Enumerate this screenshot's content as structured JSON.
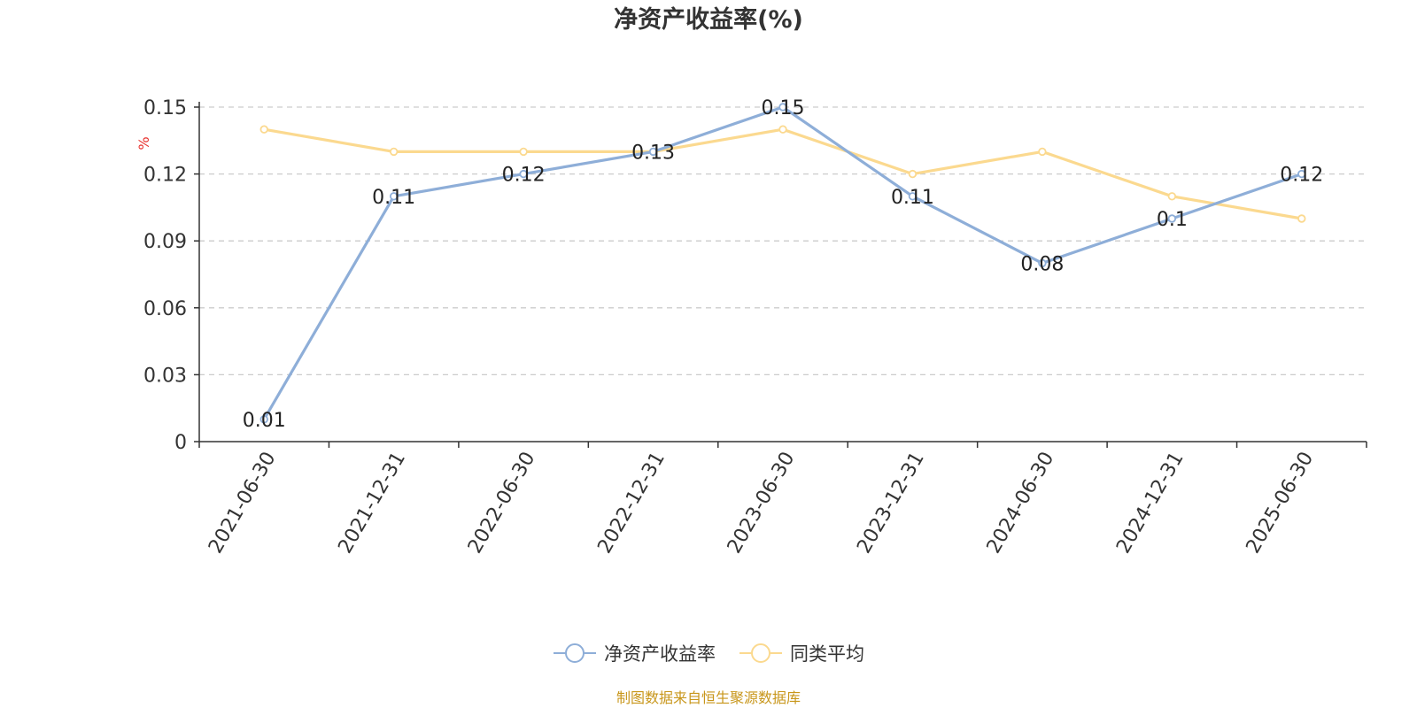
{
  "title": "净资产收益率(%)",
  "source": "制图数据来自恒生聚源数据库",
  "chart_data": {
    "type": "line",
    "title": "净资产收益率(%)",
    "ylabel": "%",
    "xlabel": "",
    "categories": [
      "2021-06-30",
      "2021-12-31",
      "2022-06-30",
      "2022-12-31",
      "2023-06-30",
      "2023-12-31",
      "2024-06-30",
      "2024-12-31",
      "2025-06-30"
    ],
    "ylim": [
      0,
      0.15
    ],
    "yticks": [
      0,
      0.03,
      0.06,
      0.09,
      0.12,
      0.15
    ],
    "ytick_labels": [
      "0",
      "0.03",
      "0.06",
      "0.09",
      "0.12",
      "0.15"
    ],
    "grid": "horizontal dashed",
    "legend_position": "bottom",
    "series": [
      {
        "name": "净资产收益率",
        "color": "#8eaed8",
        "values": [
          0.01,
          0.11,
          0.12,
          0.13,
          0.15,
          0.11,
          0.08,
          0.1,
          0.12
        ],
        "data_labels": [
          "0.01",
          "0.11",
          "0.12",
          "0.13",
          "0.15",
          "0.11",
          "0.08",
          "0.1",
          "0.12"
        ]
      },
      {
        "name": "同类平均",
        "color": "#fbd98f",
        "values": [
          0.14,
          0.13,
          0.13,
          0.13,
          0.14,
          0.12,
          0.13,
          0.11,
          0.1
        ]
      }
    ]
  }
}
